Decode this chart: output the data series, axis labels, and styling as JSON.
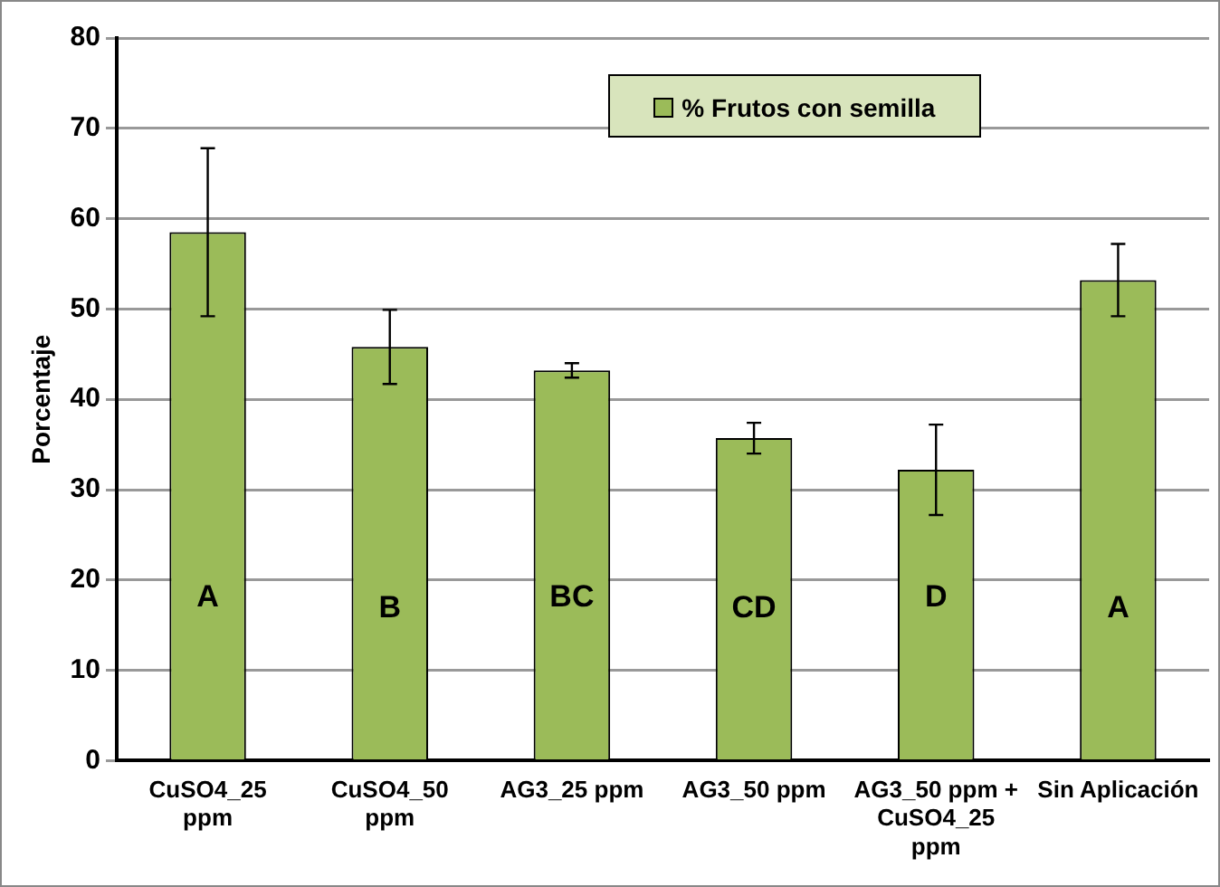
{
  "chart_data": {
    "type": "bar",
    "ylabel": "Porcentaje",
    "categories": [
      "CuSO4_25 ppm",
      "CuSO4_50 ppm",
      "AG3_25 ppm",
      "AG3_50 ppm",
      "AG3_50 ppm + CuSO4_25 ppm",
      "Sin Aplicación"
    ],
    "series": [
      {
        "name": "% Frutos con semilla",
        "color": "#9bbb59",
        "values": [
          58.5,
          45.8,
          43.2,
          35.7,
          32.2,
          53.2
        ],
        "errors": [
          9.3,
          4.1,
          0.8,
          1.7,
          5,
          4
        ]
      }
    ],
    "ylim": [
      0,
      80
    ],
    "yticks": [
      0,
      10,
      20,
      30,
      40,
      50,
      60,
      70,
      80
    ],
    "grid": "y",
    "legend": "top",
    "annotations": [
      "A",
      "B",
      "BC",
      "CD",
      "D",
      "A"
    ]
  }
}
